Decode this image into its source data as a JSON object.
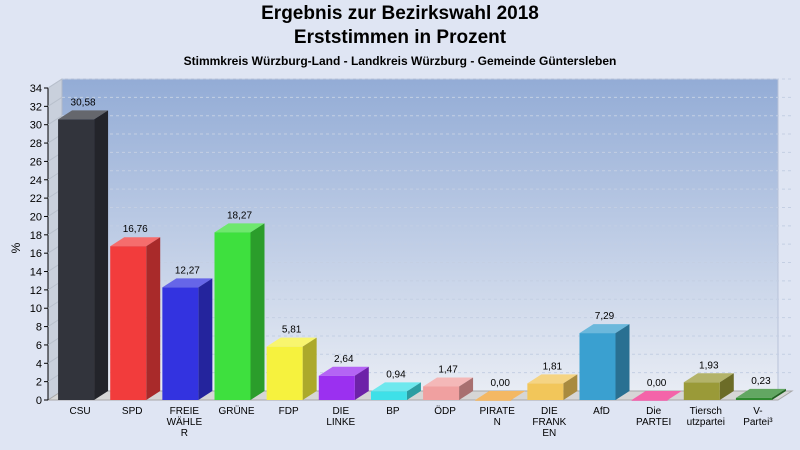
{
  "chart_data": {
    "type": "bar",
    "title": "Ergebnis zur Bezirkswahl 2018",
    "subtitle": "Erststimmen in Prozent",
    "subtitle2": "Stimmkreis Würzburg-Land - Landkreis Würzburg - Gemeinde Güntersleben",
    "ylabel": "%",
    "ylim": [
      0,
      34
    ],
    "ytick_step": 2,
    "grid": true,
    "categories": [
      [
        "CSU"
      ],
      [
        "SPD"
      ],
      [
        "FREIE",
        "WÄHLE",
        "R"
      ],
      [
        "GRÜNE"
      ],
      [
        "FDP"
      ],
      [
        "DIE",
        "LINKE"
      ],
      [
        "BP"
      ],
      [
        "ÖDP"
      ],
      [
        "PIRATE",
        "N"
      ],
      [
        "DIE",
        "FRANK",
        "EN"
      ],
      [
        "AfD"
      ],
      [
        "Die",
        "PARTEI"
      ],
      [
        "Tiersch",
        "utzpartei"
      ],
      [
        "V-",
        "Partei³"
      ]
    ],
    "values": [
      30.58,
      16.76,
      12.27,
      18.27,
      5.81,
      2.64,
      0.94,
      1.47,
      0.0,
      1.81,
      7.29,
      0.0,
      1.93,
      0.23
    ],
    "value_labels": [
      "30,58",
      "16,76",
      "12,27",
      "18,27",
      "5,81",
      "2,64",
      "0,94",
      "1,47",
      "0,00",
      "1,81",
      "7,29",
      "0,00",
      "1,93",
      "0,23"
    ],
    "colors": [
      "#32343c",
      "#f23c3c",
      "#3333e0",
      "#3ee03e",
      "#f6f23e",
      "#9b30f0",
      "#3ee0e8",
      "#f0a0a0",
      "#f0a030",
      "#f2c65a",
      "#3aa0d0",
      "#f0308c",
      "#9a9a38",
      "#2e8a2e"
    ]
  }
}
